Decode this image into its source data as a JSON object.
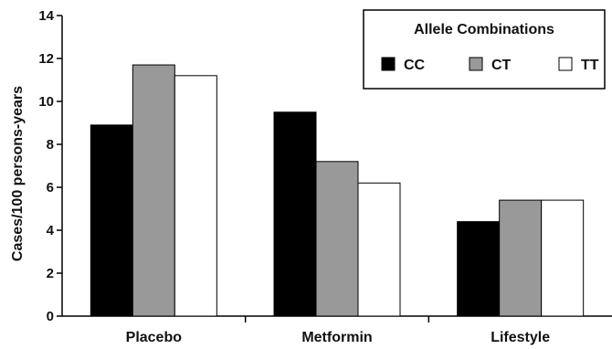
{
  "chart_data": {
    "type": "bar",
    "categories": [
      "Placebo",
      "Metformin",
      "Lifestyle"
    ],
    "series": [
      {
        "name": "CC",
        "color": "#000000",
        "values": [
          8.9,
          9.5,
          4.4
        ]
      },
      {
        "name": "CT",
        "color": "#999999",
        "values": [
          11.7,
          7.2,
          5.4
        ]
      },
      {
        "name": "TT",
        "color": "#ffffff",
        "values": [
          11.2,
          6.2,
          5.4
        ]
      }
    ],
    "ylabel": "Cases/100 persons-years",
    "ylim": [
      0,
      14
    ],
    "yticks": [
      0,
      2,
      4,
      6,
      8,
      10,
      12,
      14
    ],
    "legend": {
      "title": "Allele Combinations",
      "placement": "top-right"
    },
    "grid": false
  }
}
